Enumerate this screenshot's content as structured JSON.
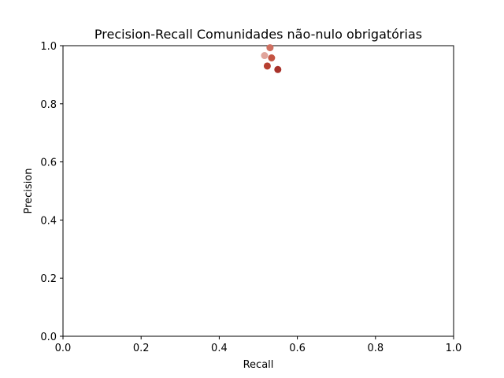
{
  "chart_data": {
    "type": "scatter",
    "title": "Precision-Recall Comunidades não-nulo obrigatórias",
    "xlabel": "Recall",
    "ylabel": "Precision",
    "xlim": [
      0.0,
      1.0
    ],
    "ylim": [
      0.0,
      1.0
    ],
    "x_ticks": [
      "0.0",
      "0.2",
      "0.4",
      "0.6",
      "0.8",
      "1.0"
    ],
    "y_ticks": [
      "0.0",
      "0.2",
      "0.4",
      "0.6",
      "0.8",
      "1.0"
    ],
    "grid": false,
    "points": [
      {
        "x": 0.516,
        "y": 0.966,
        "color": "#e0a49b"
      },
      {
        "x": 0.53,
        "y": 0.993,
        "color": "#cf6f60"
      },
      {
        "x": 0.534,
        "y": 0.958,
        "color": "#c45443"
      },
      {
        "x": 0.523,
        "y": 0.93,
        "color": "#b73f30"
      },
      {
        "x": 0.55,
        "y": 0.918,
        "color": "#a8322a"
      }
    ]
  }
}
